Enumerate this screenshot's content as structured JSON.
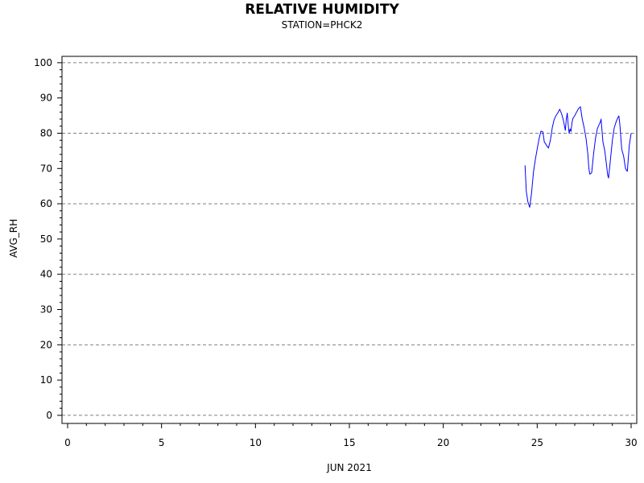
{
  "chart_data": {
    "type": "line",
    "title": "RELATIVE HUMIDITY",
    "subtitle": "STATION=PHCK2",
    "xlabel": "JUN 2021",
    "ylabel": "AVG_RH",
    "xlim": [
      -0.3,
      30.3
    ],
    "ylim": [
      -2.3,
      101.8
    ],
    "x_ticks": [
      0,
      5,
      10,
      15,
      20,
      25,
      30
    ],
    "y_ticks": [
      0,
      10,
      20,
      30,
      40,
      50,
      60,
      70,
      80,
      90,
      100
    ],
    "grid": {
      "horizontal_dashed_at": [
        0,
        20,
        40,
        60,
        80,
        100
      ]
    },
    "colors": {
      "series": "#0000ff",
      "grid": "#808080",
      "axis": "#000000"
    },
    "series": [
      {
        "x": [
          24.35,
          24.42,
          24.5,
          24.6,
          24.7,
          24.8,
          24.9,
          25.0,
          25.1,
          25.2,
          25.3,
          25.38,
          25.45,
          25.5,
          25.6,
          25.7,
          25.8,
          25.9,
          26.0,
          26.1,
          26.2,
          26.3,
          26.4,
          26.5,
          26.55,
          26.6,
          26.65,
          26.7,
          26.75,
          26.8,
          26.85,
          26.9,
          27.0,
          27.1,
          27.2,
          27.3,
          27.4,
          27.5,
          27.6,
          27.7,
          27.75,
          27.8,
          27.9,
          28.0,
          28.1,
          28.2,
          28.3,
          28.35,
          28.4,
          28.5,
          28.6,
          28.7,
          28.75,
          28.8,
          28.9,
          29.0,
          29.1,
          29.2,
          29.3,
          29.35,
          29.4,
          29.5,
          29.6,
          29.7,
          29.75,
          29.8,
          29.9,
          30.0
        ],
        "y": [
          70.9,
          63.5,
          60.6,
          59.0,
          63.0,
          69.0,
          72.5,
          75.5,
          78.5,
          80.6,
          80.4,
          77.5,
          77.0,
          76.5,
          75.8,
          78.0,
          81.5,
          83.8,
          85.0,
          85.8,
          86.8,
          85.5,
          83.5,
          80.8,
          84.0,
          85.7,
          82.5,
          80.0,
          81.2,
          80.5,
          83.0,
          84.2,
          85.0,
          86.0,
          87.0,
          87.5,
          84.0,
          81.5,
          78.5,
          74.0,
          70.0,
          68.4,
          68.8,
          74.0,
          78.5,
          81.2,
          82.5,
          83.0,
          84.0,
          77.5,
          75.0,
          70.5,
          68.2,
          67.3,
          72.5,
          78.0,
          81.5,
          83.2,
          84.5,
          84.9,
          82.5,
          75.5,
          73.5,
          70.0,
          69.5,
          69.2,
          76.5,
          80.0
        ]
      }
    ]
  }
}
